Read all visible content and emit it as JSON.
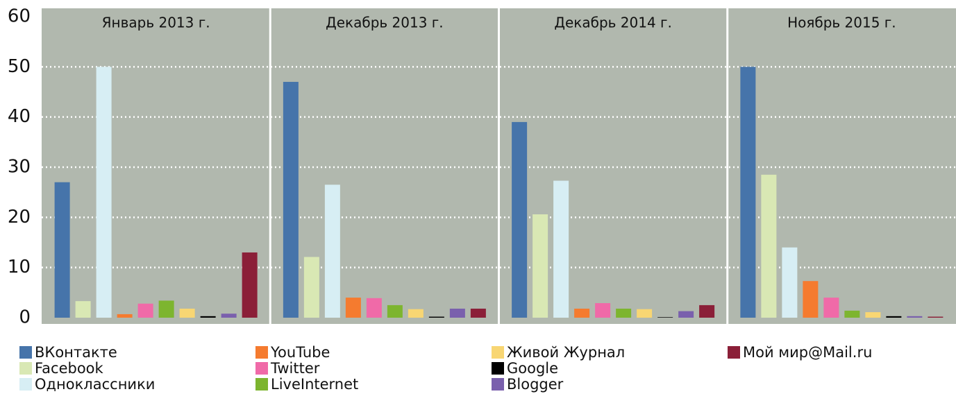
{
  "chart_data": {
    "type": "bar",
    "categories": [
      "Январь 2013 г.",
      "Декабрь 2013 г.",
      "Декабрь 2014 г.",
      "Ноябрь 2015 г."
    ],
    "series": [
      {
        "name": "ВКонтакте",
        "color": "#4674aa",
        "values": [
          27,
          47,
          39,
          50
        ]
      },
      {
        "name": "Facebook",
        "color": "#d9e8b4",
        "values": [
          3.3,
          12.1,
          20.6,
          28.5
        ]
      },
      {
        "name": "Одноклассники",
        "color": "#d7eef4",
        "values": [
          50,
          26.5,
          27.3,
          14
        ]
      },
      {
        "name": "YouTube",
        "color": "#f57b2f",
        "values": [
          0.7,
          4,
          1.8,
          7.3
        ]
      },
      {
        "name": "Twitter",
        "color": "#f06aa8",
        "values": [
          2.8,
          3.9,
          2.9,
          4
        ]
      },
      {
        "name": "LiveInternet",
        "color": "#7db52f",
        "values": [
          3.4,
          2.5,
          1.8,
          1.4
        ]
      },
      {
        "name": "Живой Журнал",
        "color": "#f8d673",
        "values": [
          1.8,
          1.7,
          1.7,
          1.1
        ]
      },
      {
        "name": "Google",
        "color": "#000000",
        "values": [
          0.3,
          0.2,
          0.1,
          0.3
        ]
      },
      {
        "name": "Blogger",
        "color": "#7a60ad",
        "values": [
          0.8,
          1.8,
          1.3,
          0.3
        ]
      },
      {
        "name": "Мой мир@Mail.ru",
        "color": "#8b1f38",
        "values": [
          13,
          1.8,
          2.5,
          0.2
        ]
      }
    ],
    "ylim": [
      0,
      60
    ],
    "yticks": [
      0,
      10,
      20,
      30,
      40,
      50,
      60
    ],
    "grid": true
  }
}
